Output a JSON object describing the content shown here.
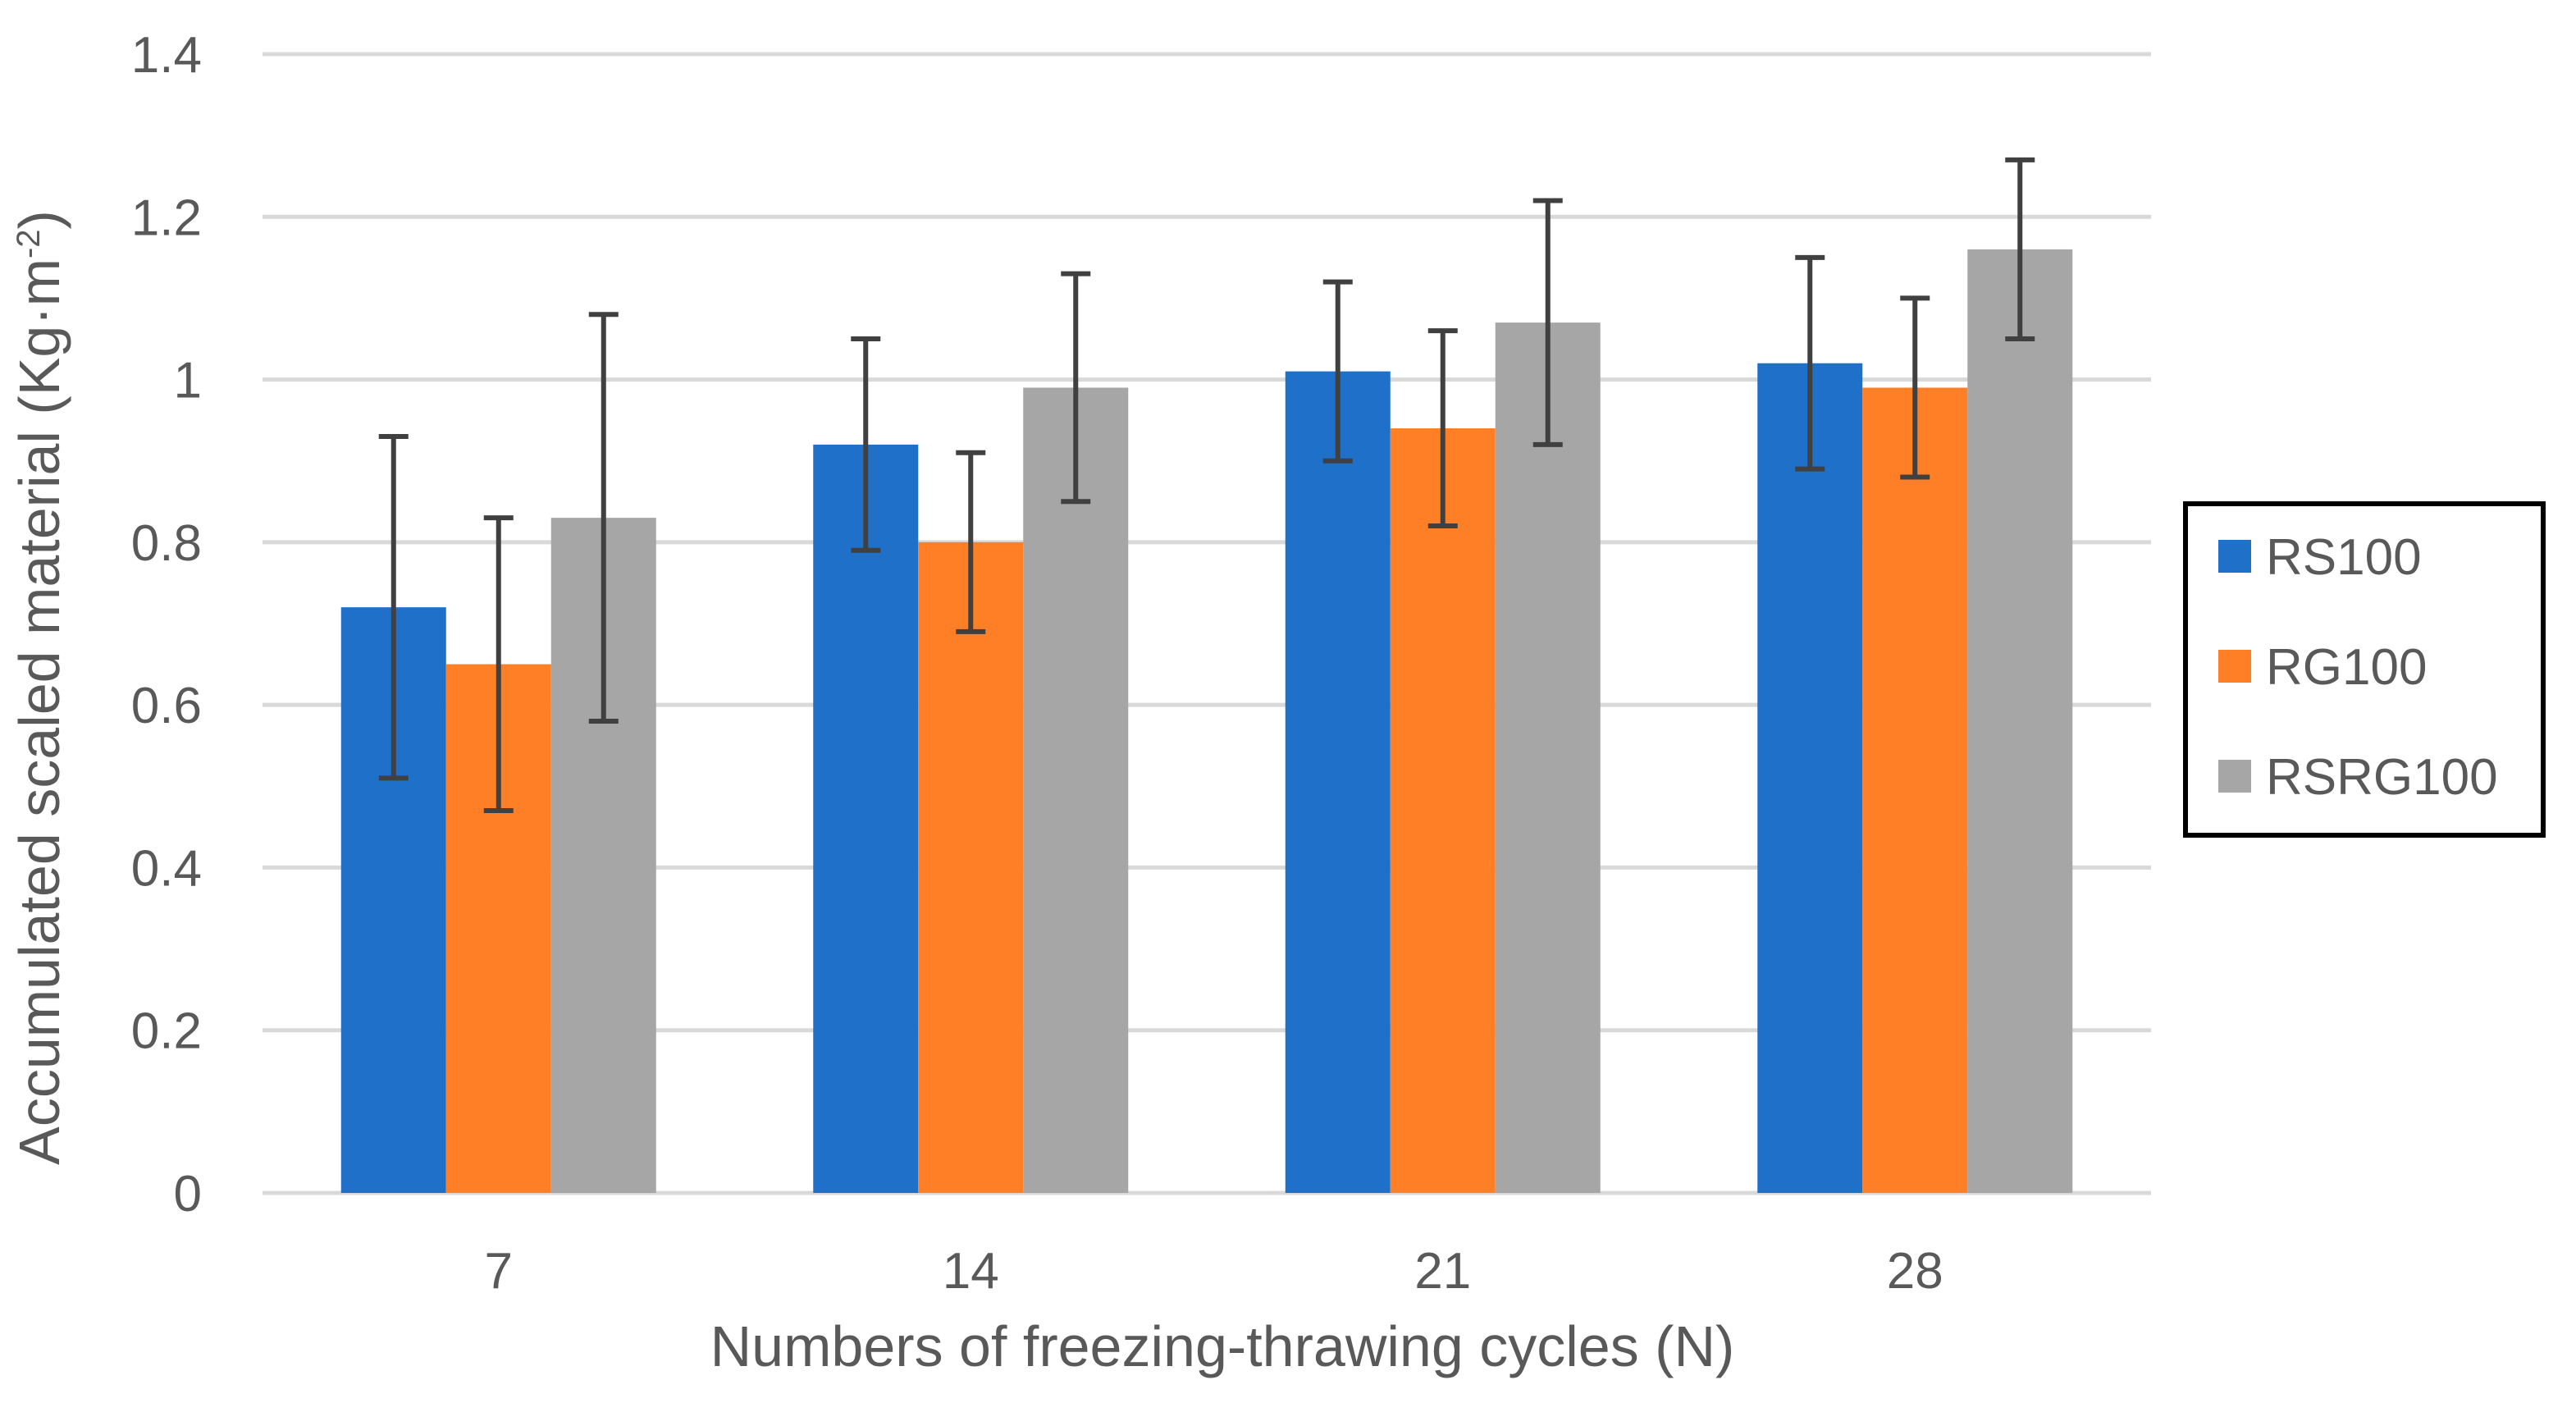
{
  "chart_data": {
    "type": "bar",
    "title": "",
    "xlabel": "Numbers of freezing-thrawing cycles (N)",
    "ylabel": "Accumulated scaled material (Kg·m",
    "ylabel_superscript": "-2",
    "ylabel_close": ")",
    "categories": [
      "7",
      "14",
      "21",
      "28"
    ],
    "ylim": [
      0,
      1.4
    ],
    "yticks": [
      0,
      0.2,
      0.4,
      0.6,
      0.8,
      1,
      1.2,
      1.4
    ],
    "ytick_labels": [
      "0",
      "0.2",
      "0.4",
      "0.6",
      "0.8",
      "1",
      "1.2",
      "1.4"
    ],
    "grid": true,
    "legend_position": "right",
    "series": [
      {
        "name": "RS100",
        "color": "#1F70C8",
        "values": [
          0.72,
          0.92,
          1.01,
          1.02
        ],
        "error_low": [
          0.51,
          0.79,
          0.9,
          0.89
        ],
        "error_high": [
          0.93,
          1.05,
          1.12,
          1.15
        ]
      },
      {
        "name": "RG100",
        "color": "#FF7F27",
        "values": [
          0.65,
          0.8,
          0.94,
          0.99
        ],
        "error_low": [
          0.47,
          0.69,
          0.82,
          0.88
        ],
        "error_high": [
          0.83,
          0.91,
          1.06,
          1.1
        ]
      },
      {
        "name": "RSRG100",
        "color": "#A6A6A6",
        "values": [
          0.83,
          0.99,
          1.07,
          1.16
        ],
        "error_low": [
          0.58,
          0.85,
          0.92,
          1.05
        ],
        "error_high": [
          1.08,
          1.13,
          1.22,
          1.27
        ]
      }
    ],
    "colors": {
      "grid": "#D9D9D9",
      "error_bar": "#404040",
      "text": "#595959",
      "legend_border": "#000000"
    }
  }
}
